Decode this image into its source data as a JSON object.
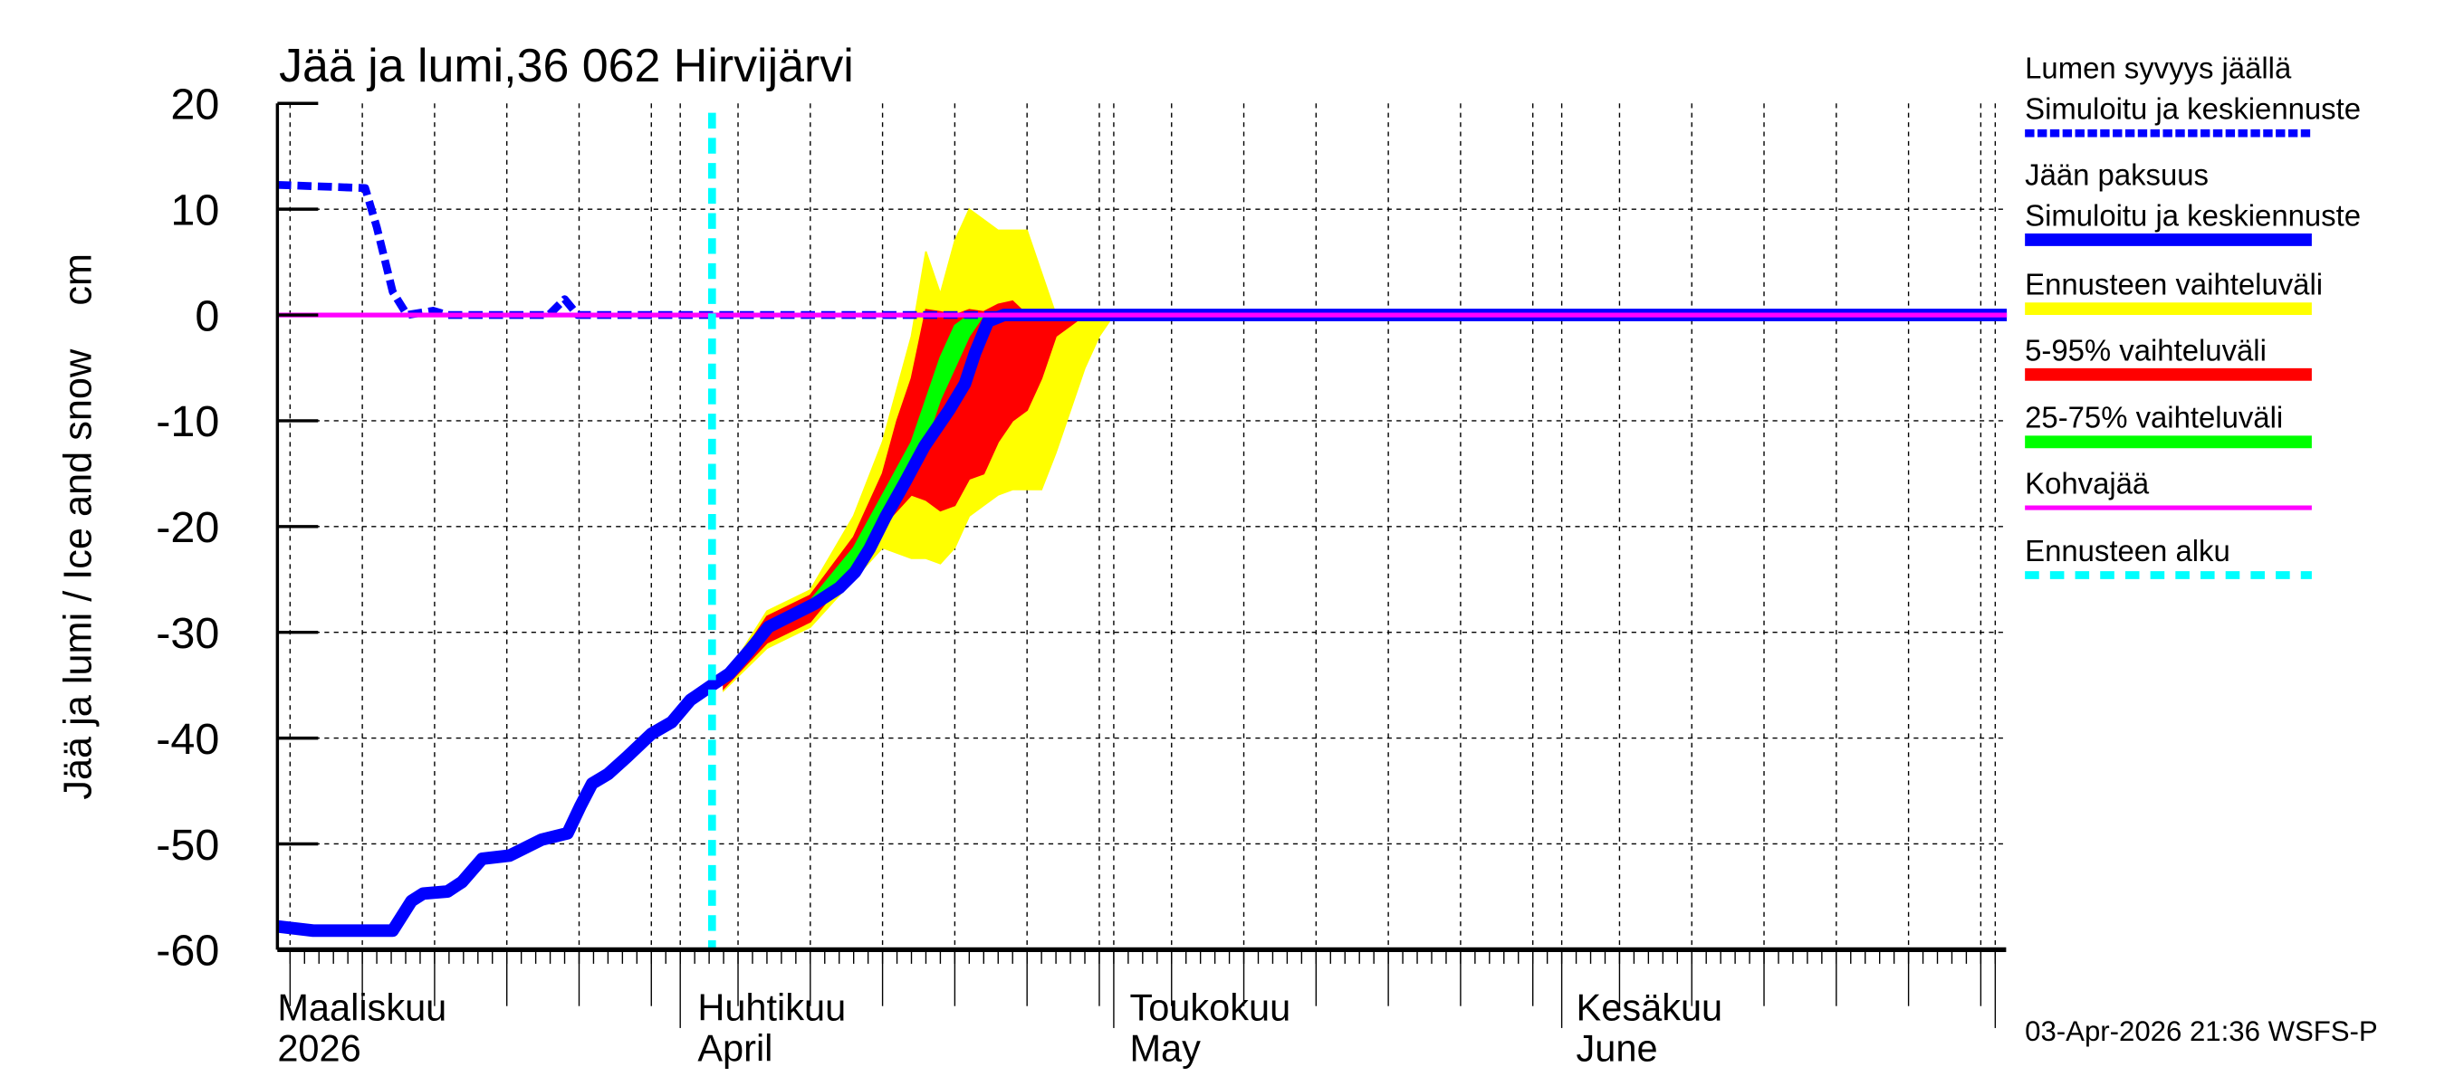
{
  "chart_data": {
    "type": "area",
    "title": "Jää ja lumi,36 062 Hirvijärvi",
    "ylabel": "Jää ja lumi / Ice and snow    cm",
    "xlabel": "",
    "x_unit": "days since 2026-03-01",
    "xlim": [
      3.1,
      122.8
    ],
    "ylim": [
      -60,
      20
    ],
    "yticks": [
      20,
      10,
      0,
      -10,
      -20,
      -30,
      -40,
      -50,
      -60
    ],
    "grid": true,
    "legend_position": "right",
    "month_labels": [
      {
        "day": 3.1,
        "fi": "Maaliskuu",
        "en": "2026"
      },
      {
        "day": 32.2,
        "fi": "Huhtikuu",
        "en": "April"
      },
      {
        "day": 62.1,
        "fi": "Toukokuu",
        "en": "May"
      },
      {
        "day": 93,
        "fi": "Kesäkuu",
        "en": "June"
      }
    ],
    "month_starts": [
      0,
      31,
      61,
      92,
      122
    ],
    "forecast_start_day": 33.2,
    "series": [
      {
        "name": "Lumen syvyys jäällä – Simuloitu ja keskiennuste",
        "style": "dashed",
        "color": "#0000ff",
        "x": [
          3.1,
          9.2,
          10.0,
          11.1,
          12.1,
          13.9,
          14.9,
          21.9,
          23.0,
          23.9,
          60
        ],
        "y": [
          12.3,
          12.0,
          8.3,
          2.2,
          0,
          0.4,
          0,
          0,
          1.5,
          0,
          0
        ]
      },
      {
        "name": "Jään paksuus – Simuloitu ja keskiennuste",
        "style": "solid",
        "color": "#0000ff",
        "x": [
          3.1,
          5.6,
          11.1,
          12.4,
          13.2,
          14.9,
          15.9,
          17.3,
          19.2,
          21.4,
          23.2,
          24.1,
          24.9,
          26.0,
          27.3,
          29.0,
          30.4,
          31.7,
          33.3,
          34.4,
          35.8,
          37.1,
          38.7,
          40.3,
          42.0,
          43.1,
          44.1,
          45.2,
          46.6,
          47.9,
          49.6,
          50.7,
          51.4,
          52.3,
          53.4,
          122.8
        ],
        "y": [
          -57.8,
          -58.2,
          -58.2,
          -55.4,
          -54.7,
          -54.5,
          -53.6,
          -51.4,
          -51.1,
          -49.6,
          -49.0,
          -46.4,
          -44.3,
          -43.4,
          -41.8,
          -39.6,
          -38.5,
          -36.4,
          -34.9,
          -33.9,
          -31.7,
          -29.5,
          -28.4,
          -27.3,
          -25.8,
          -24.3,
          -22.1,
          -19.1,
          -15.7,
          -12.4,
          -9.0,
          -6.5,
          -3.6,
          -0.6,
          0,
          0
        ]
      },
      {
        "name": "Kohvajää",
        "style": "solid",
        "color": "#ff00ff",
        "x": [
          3.1,
          122.8
        ],
        "y": [
          0,
          0
        ]
      }
    ],
    "bands": [
      {
        "name": "Ennusteen vaihteluväli",
        "color": "#ffff00",
        "x": [
          34,
          37,
          40,
          43,
          45,
          47,
          48,
          49,
          50,
          51,
          52,
          53,
          54,
          55,
          56,
          57,
          58,
          59,
          60,
          61
        ],
        "upper": [
          -34.5,
          -28,
          -26,
          -19,
          -12,
          -2,
          6,
          2,
          7,
          10,
          9,
          8,
          8,
          8,
          4,
          0,
          0,
          0,
          0,
          0
        ],
        "lower": [
          -35.5,
          -31.5,
          -29.5,
          -25,
          -22,
          -23,
          -23,
          -23.5,
          -22,
          -19,
          -18,
          -17,
          -16.5,
          -16.5,
          -16.5,
          -13,
          -9,
          -5,
          -2,
          0
        ]
      },
      {
        "name": "5-95% vaihteluväli",
        "color": "#ff0000",
        "x": [
          34,
          37,
          40,
          43,
          45,
          46,
          47,
          48,
          49,
          50,
          51,
          52,
          53,
          54,
          55,
          56,
          57,
          58,
          59
        ],
        "upper": [
          -34.7,
          -28.5,
          -26.5,
          -21,
          -15,
          -10,
          -6,
          0.5,
          0.3,
          0,
          0.5,
          0.3,
          1,
          1.3,
          0,
          0,
          0,
          0,
          0
        ],
        "lower": [
          -35.3,
          -31,
          -29,
          -24,
          -20,
          -18.5,
          -17,
          -17.5,
          -18.5,
          -18,
          -15.5,
          -15,
          -12,
          -10,
          -9,
          -6,
          -2,
          -1,
          0
        ]
      },
      {
        "name": "25-75% vaihteluväli",
        "color": "#00ff00",
        "x": [
          40,
          43,
          45,
          47,
          48,
          49,
          50,
          51,
          52
        ],
        "upper": [
          -27,
          -22,
          -17,
          -12,
          -8,
          -4,
          -1,
          0,
          0
        ],
        "lower": [
          -28,
          -24,
          -19,
          -15,
          -12,
          -8,
          -5,
          -2,
          0
        ]
      }
    ],
    "legend": [
      {
        "line1": "Lumen syvyys jäällä",
        "line2": "Simuloitu ja keskiennuste",
        "color": "#0000ff",
        "style": "dashed"
      },
      {
        "line1": "Jään paksuus",
        "line2": "Simuloitu ja keskiennuste",
        "color": "#0000ff",
        "style": "thick"
      },
      {
        "line1": "Ennusteen vaihteluväli",
        "line2": "",
        "color": "#ffff00",
        "style": "thick"
      },
      {
        "line1": "5-95% vaihteluväli",
        "line2": "",
        "color": "#ff0000",
        "style": "thick"
      },
      {
        "line1": "25-75% vaihteluväli",
        "line2": "",
        "color": "#00ff00",
        "style": "thick"
      },
      {
        "line1": "Kohvajää",
        "line2": "",
        "color": "#ff00ff",
        "style": "thin"
      },
      {
        "line1": "Ennusteen alku",
        "line2": "",
        "color": "#00ffff",
        "style": "dashed"
      }
    ],
    "footer": "03-Apr-2026 21:36 WSFS-P",
    "forecast_line_color": "#00ffff"
  }
}
